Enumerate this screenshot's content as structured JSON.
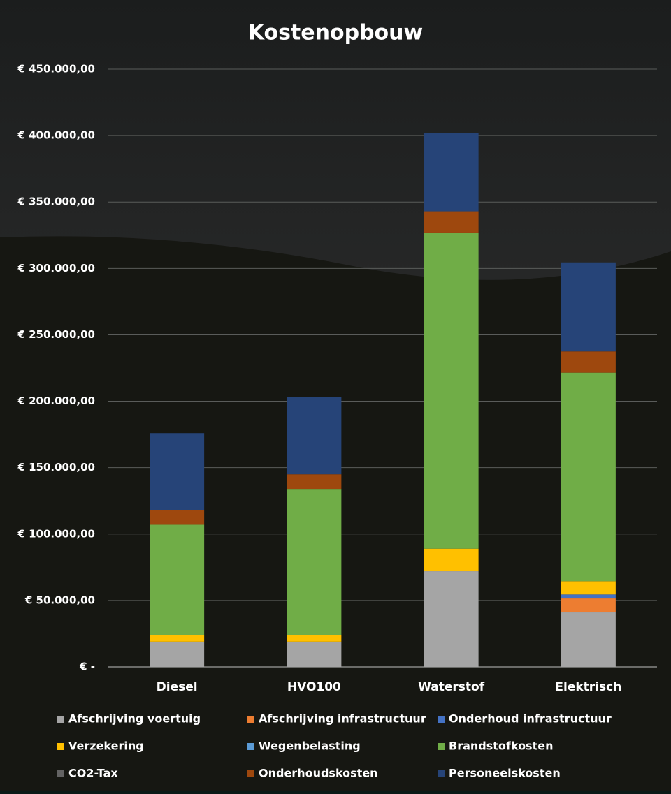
{
  "chart_data": {
    "type": "stacked_bar",
    "title": "Kostenopbouw",
    "categories": [
      "Diesel",
      "HVO100",
      "Waterstof",
      "Elektrisch"
    ],
    "series": [
      {
        "name": "Afschrijving voertuig",
        "color": "#a5a5a5",
        "values": [
          19000,
          19000,
          72000,
          41000
        ]
      },
      {
        "name": "Afschrijving infrastructuur",
        "color": "#ed7d31",
        "values": [
          0,
          0,
          0,
          10500
        ]
      },
      {
        "name": "Onderhoud infrastructuur",
        "color": "#4472c4",
        "values": [
          0,
          0,
          0,
          3000
        ]
      },
      {
        "name": "Verzekering",
        "color": "#ffc000",
        "values": [
          5000,
          5000,
          17000,
          10000
        ]
      },
      {
        "name": "Wegenbelasting",
        "color": "#5b9bd5",
        "values": [
          0,
          0,
          0,
          0
        ]
      },
      {
        "name": "Brandstofkosten",
        "color": "#70ad47",
        "values": [
          83000,
          110000,
          238000,
          157000
        ]
      },
      {
        "name": "CO2-Tax",
        "color": "#636363",
        "values": [
          0,
          0,
          0,
          0
        ]
      },
      {
        "name": "Onderhoudskosten",
        "color": "#9e480e",
        "values": [
          11000,
          11000,
          16000,
          16000
        ]
      },
      {
        "name": "Personeelskosten",
        "color": "#264478",
        "values": [
          58000,
          58000,
          59000,
          67000
        ]
      }
    ],
    "ylim": [
      0,
      450000
    ],
    "yticks": [
      {
        "value": 0,
        "label": "€ -"
      },
      {
        "value": 50000,
        "label": "€ 50.000,00"
      },
      {
        "value": 100000,
        "label": "€ 100.000,00"
      },
      {
        "value": 150000,
        "label": "€ 150.000,00"
      },
      {
        "value": 200000,
        "label": "€ 200.000,00"
      },
      {
        "value": 250000,
        "label": "€ 250.000,00"
      },
      {
        "value": 300000,
        "label": "€ 300.000,00"
      },
      {
        "value": 350000,
        "label": "€ 350.000,00"
      },
      {
        "value": 400000,
        "label": "€ 400.000,00"
      },
      {
        "value": 450000,
        "label": "€ 450.000,00"
      }
    ],
    "grid": true
  }
}
